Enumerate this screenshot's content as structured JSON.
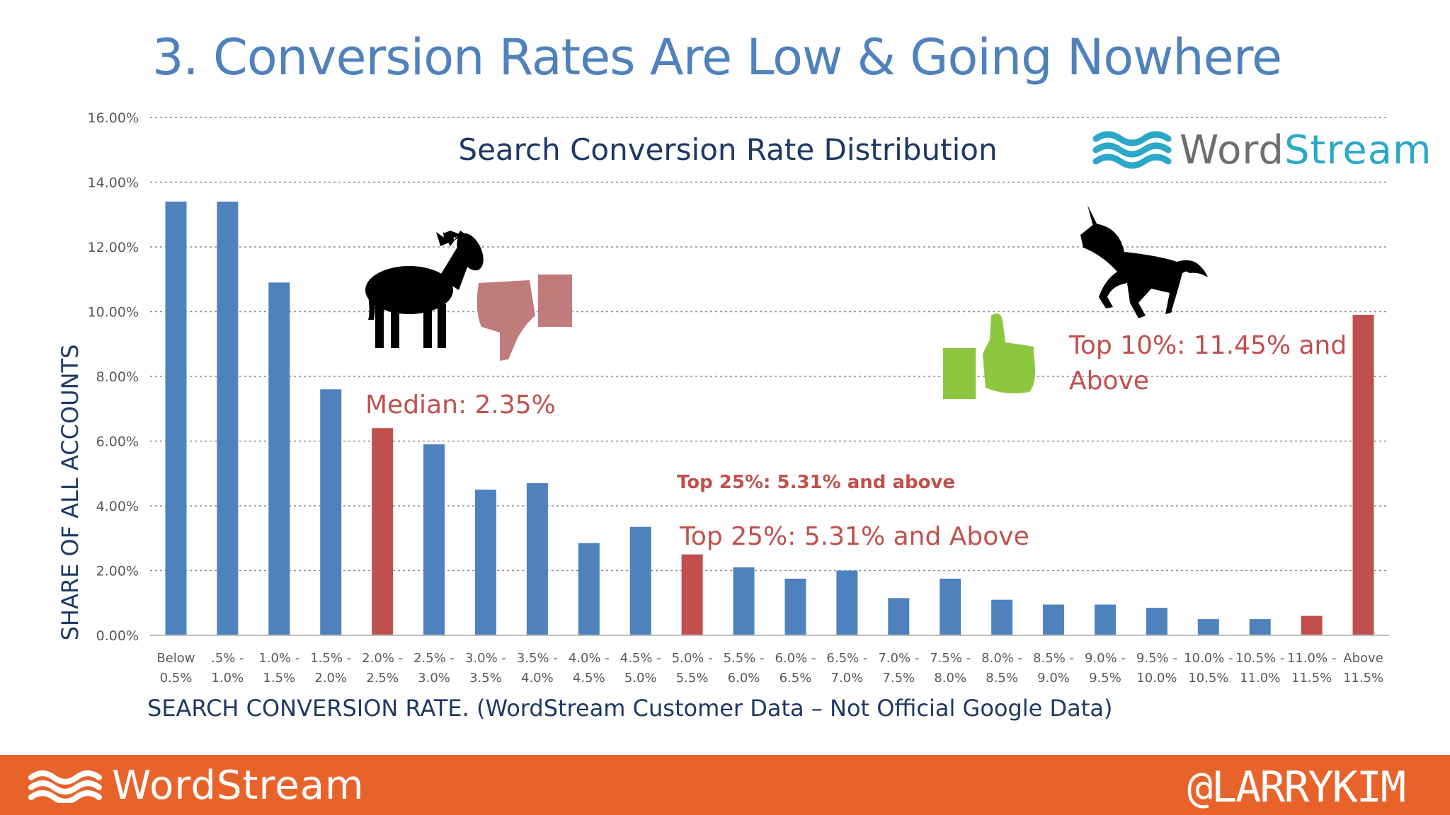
{
  "slide": {
    "title": "3. Conversion Rates Are Low & Going Nowhere",
    "footer_brand": "WordStream",
    "footer_handle": "@LARRYKIM"
  },
  "logo": {
    "word_part1": "Word",
    "word_part2": "Stream"
  },
  "colors": {
    "blue_bar": "#4f81bd",
    "red_bar": "#c0504d",
    "annotation": "#c0504d",
    "title": "#4f81bd",
    "chart_title": "#1f3864",
    "footer": "#e8632a",
    "thumbs_down": "#c07b7b",
    "thumbs_up": "#8dc63f"
  },
  "icons": [
    "donkey-icon",
    "thumbs-down-icon",
    "unicorn-icon",
    "thumbs-up-icon",
    "wordstream-waves-icon"
  ],
  "chart_data": {
    "type": "bar",
    "title": "Search Conversion Rate Distribution",
    "xlabel": "SEARCH CONVERSION RATE.  (WordStream Customer Data – Not Official Google Data)",
    "ylabel": "SHARE OF ALL ACCOUNTS",
    "ylim": [
      0,
      16
    ],
    "yticks": [
      "0.00%",
      "2.00%",
      "4.00%",
      "6.00%",
      "8.00%",
      "10.00%",
      "12.00%",
      "14.00%",
      "16.00%"
    ],
    "grid": true,
    "categories": [
      [
        "Below",
        "0.5%"
      ],
      [
        ".5% -",
        "1.0%"
      ],
      [
        "1.0% -",
        "1.5%"
      ],
      [
        "1.5% -",
        "2.0%"
      ],
      [
        "2.0% -",
        "2.5%"
      ],
      [
        "2.5% -",
        "3.0%"
      ],
      [
        "3.0% -",
        "3.5%"
      ],
      [
        "3.5% -",
        "4.0%"
      ],
      [
        "4.0% -",
        "4.5%"
      ],
      [
        "4.5% -",
        "5.0%"
      ],
      [
        "5.0% -",
        "5.5%"
      ],
      [
        "5.5% -",
        "6.0%"
      ],
      [
        "6.0% -",
        "6.5%"
      ],
      [
        "6.5% -",
        "7.0%"
      ],
      [
        "7.0% -",
        "7.5%"
      ],
      [
        "7.5% -",
        "8.0%"
      ],
      [
        "8.0% -",
        "8.5%"
      ],
      [
        "8.5% -",
        "9.0%"
      ],
      [
        "9.0% -",
        "9.5%"
      ],
      [
        "9.5% -",
        "10.0%"
      ],
      [
        "10.0% -",
        "10.5%"
      ],
      [
        "10.5% -",
        "11.0%"
      ],
      [
        "11.0% -",
        "11.5%"
      ],
      [
        "Above",
        "11.5%"
      ]
    ],
    "values": [
      13.4,
      13.4,
      10.9,
      7.6,
      6.4,
      5.9,
      4.5,
      4.7,
      2.85,
      3.35,
      2.5,
      2.1,
      1.75,
      2.0,
      1.15,
      1.75,
      1.1,
      0.95,
      0.95,
      0.85,
      0.5,
      0.5,
      0.6,
      9.9
    ],
    "highlighted": [
      4,
      10,
      22,
      23
    ],
    "annotations": {
      "median": "Median: 2.35%",
      "top25_small": "Top 25%: 5.31% and above",
      "top25": "Top 25%: 5.31% and Above",
      "top10_line1": "Top 10%: 11.45% and",
      "top10_line2": "Above"
    }
  }
}
